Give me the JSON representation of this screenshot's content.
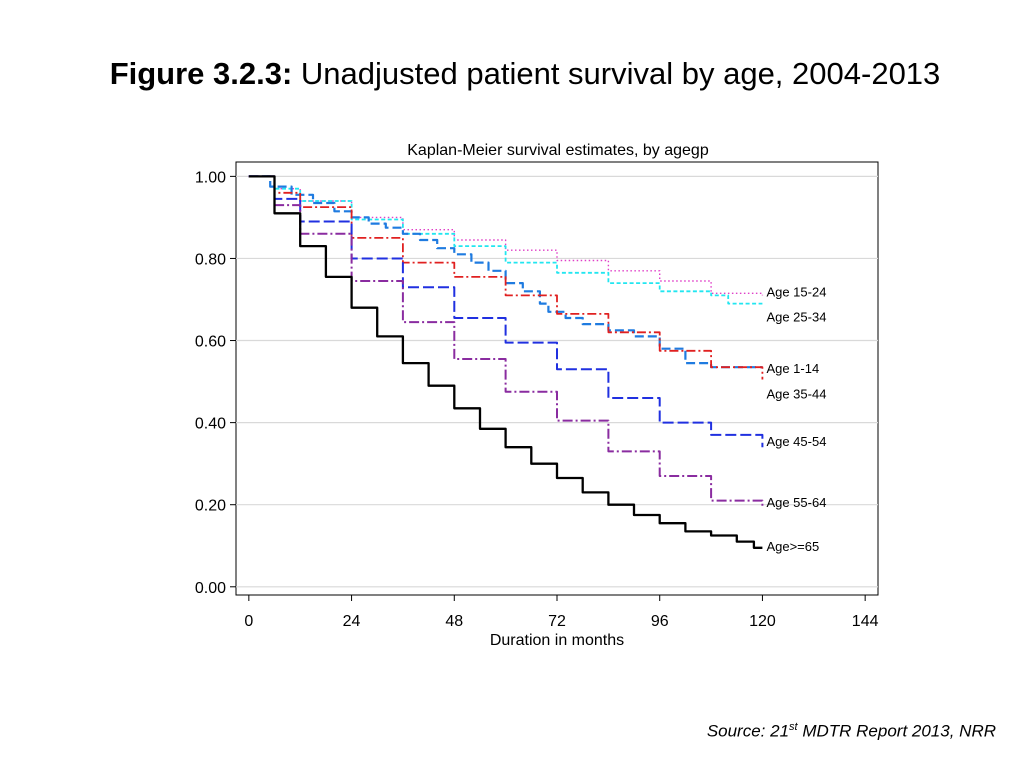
{
  "slide": {
    "title_bold": "Figure 3.2.3:",
    "title_rest": " Unadjusted patient survival by age, 2004-2013",
    "source_prefix": "Source: 21",
    "source_sup": "st",
    "source_suffix": " MDTR Report 2013, NRR"
  },
  "chart_data": {
    "type": "line",
    "title": "Kaplan-Meier survival estimates, by agegp",
    "xlabel": "Duration in months",
    "ylabel": "",
    "xlim": [
      -3,
      147
    ],
    "ylim": [
      -0.02,
      1.035
    ],
    "xticks": [
      0,
      24,
      48,
      72,
      96,
      120,
      144
    ],
    "yticks": [
      0.0,
      0.2,
      0.4,
      0.6,
      0.8,
      1.0
    ],
    "ytick_labels": [
      "0.00",
      "0.20",
      "0.40",
      "0.60",
      "0.80",
      "1.00"
    ],
    "grid": "horizontal",
    "legend": "line-end labels",
    "series": [
      {
        "name": "Age 15-24",
        "color": "#e040c8",
        "dash": "1.5,2.5",
        "width": 1.4,
        "x": [
          0,
          6,
          12,
          24,
          36,
          48,
          60,
          72,
          84,
          96,
          108,
          120
        ],
        "y": [
          1.0,
          0.97,
          0.94,
          0.9,
          0.87,
          0.845,
          0.82,
          0.795,
          0.77,
          0.745,
          0.715,
          0.71
        ]
      },
      {
        "name": "Age 25-34",
        "color": "#22e6f0",
        "dash": "4,2.5",
        "width": 1.8,
        "x": [
          0,
          6,
          12,
          24,
          36,
          48,
          60,
          72,
          84,
          96,
          108,
          112,
          120
        ],
        "y": [
          1.0,
          0.97,
          0.94,
          0.895,
          0.86,
          0.83,
          0.79,
          0.765,
          0.74,
          0.72,
          0.71,
          0.69,
          0.69
        ]
      },
      {
        "name": "Age 1-14",
        "color": "#1f7be0",
        "dash": "9,4",
        "width": 2.2,
        "x": [
          0,
          5,
          10,
          15,
          20,
          24,
          28,
          32,
          36,
          40,
          44,
          48,
          52,
          56,
          60,
          64,
          68,
          70,
          74,
          78,
          84,
          90,
          96,
          102,
          108,
          120
        ],
        "y": [
          1.0,
          0.975,
          0.955,
          0.935,
          0.915,
          0.9,
          0.885,
          0.875,
          0.86,
          0.845,
          0.825,
          0.81,
          0.79,
          0.77,
          0.74,
          0.72,
          0.69,
          0.67,
          0.655,
          0.64,
          0.625,
          0.61,
          0.58,
          0.545,
          0.535,
          0.535
        ]
      },
      {
        "name": "Age 35-44",
        "color": "#e02020",
        "dash": "9,3,2,3",
        "width": 1.8,
        "x": [
          0,
          6,
          12,
          24,
          36,
          48,
          60,
          72,
          84,
          96,
          108,
          120
        ],
        "y": [
          1.0,
          0.96,
          0.925,
          0.85,
          0.79,
          0.755,
          0.71,
          0.665,
          0.62,
          0.575,
          0.535,
          0.505
        ]
      },
      {
        "name": "Age 45-54",
        "color": "#2030e0",
        "dash": "11,4",
        "width": 2.0,
        "x": [
          0,
          6,
          12,
          24,
          36,
          48,
          60,
          72,
          84,
          96,
          108,
          120
        ],
        "y": [
          1.0,
          0.945,
          0.89,
          0.8,
          0.73,
          0.655,
          0.595,
          0.53,
          0.46,
          0.4,
          0.37,
          0.34
        ]
      },
      {
        "name": "Age 55-64",
        "color": "#8a2ca0",
        "dash": "10,3,2,3",
        "width": 2.0,
        "x": [
          0,
          6,
          12,
          24,
          36,
          48,
          60,
          72,
          84,
          96,
          108,
          120
        ],
        "y": [
          1.0,
          0.93,
          0.86,
          0.745,
          0.645,
          0.555,
          0.475,
          0.405,
          0.33,
          0.27,
          0.21,
          0.195
        ]
      },
      {
        "name": "Age>=65",
        "color": "#000000",
        "dash": "",
        "width": 2.3,
        "x": [
          0,
          6,
          12,
          18,
          24,
          30,
          36,
          42,
          48,
          54,
          60,
          66,
          72,
          78,
          84,
          90,
          96,
          102,
          108,
          114,
          118,
          120
        ],
        "y": [
          1.0,
          0.91,
          0.83,
          0.755,
          0.68,
          0.61,
          0.545,
          0.49,
          0.435,
          0.385,
          0.34,
          0.3,
          0.265,
          0.23,
          0.2,
          0.175,
          0.155,
          0.135,
          0.125,
          0.11,
          0.095,
          0.095
        ]
      }
    ]
  }
}
